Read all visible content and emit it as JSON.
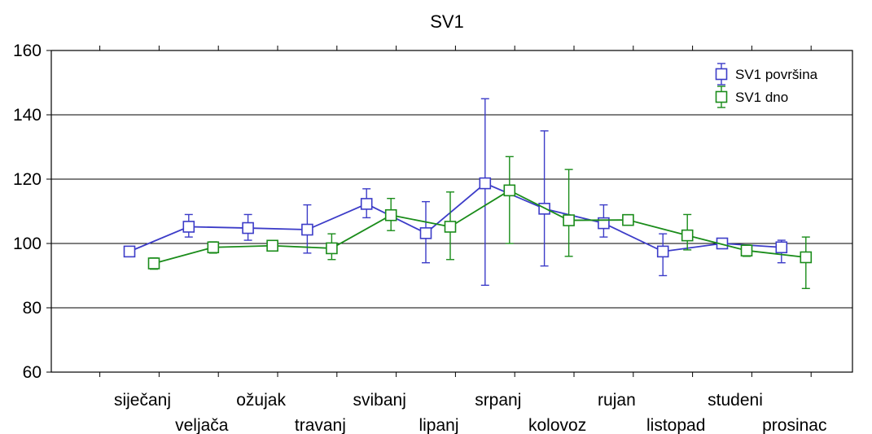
{
  "chart_data": {
    "type": "line",
    "title": "SV1",
    "xlabel": "",
    "ylabel": "",
    "ylim": [
      60,
      160
    ],
    "yticks": [
      60,
      80,
      100,
      120,
      140,
      160
    ],
    "grid": "horizontal",
    "legend_position": "top-right",
    "categories": [
      "siječanj",
      "veljača",
      "ožujak",
      "travanj",
      "svibanj",
      "lipanj",
      "srpanj",
      "kolovoz",
      "rujan",
      "listopad",
      "studeni",
      "prosinac"
    ],
    "series": [
      {
        "name": "SV1 površina",
        "color": "#3c3cc8",
        "marker": "square",
        "values": [
          97.5,
          105.2,
          104.8,
          104.3,
          112.3,
          103.2,
          118.7,
          110.8,
          106.3,
          97.5,
          100.0,
          98.8
        ],
        "err_low": [
          97.5,
          102.0,
          101.0,
          97.0,
          108.0,
          94.0,
          87.0,
          93.0,
          102.0,
          90.0,
          99.0,
          94.0
        ],
        "err_high": [
          97.5,
          109.0,
          109.0,
          112.0,
          117.0,
          113.0,
          145.0,
          135.0,
          112.0,
          103.0,
          101.0,
          101.0
        ]
      },
      {
        "name": "SV1 dno",
        "color": "#1a8c1a",
        "marker": "square",
        "values": [
          93.8,
          98.8,
          99.3,
          98.5,
          108.8,
          105.2,
          116.5,
          107.2,
          107.3,
          102.5,
          97.8,
          95.7
        ],
        "err_low": [
          92.0,
          97.0,
          98.0,
          95.0,
          104.0,
          95.0,
          100.0,
          96.0,
          106.0,
          98.0,
          96.0,
          86.0
        ],
        "err_high": [
          95.5,
          100.5,
          100.5,
          103.0,
          114.0,
          116.0,
          127.0,
          123.0,
          108.5,
          109.0,
          99.5,
          102.0
        ]
      }
    ]
  }
}
